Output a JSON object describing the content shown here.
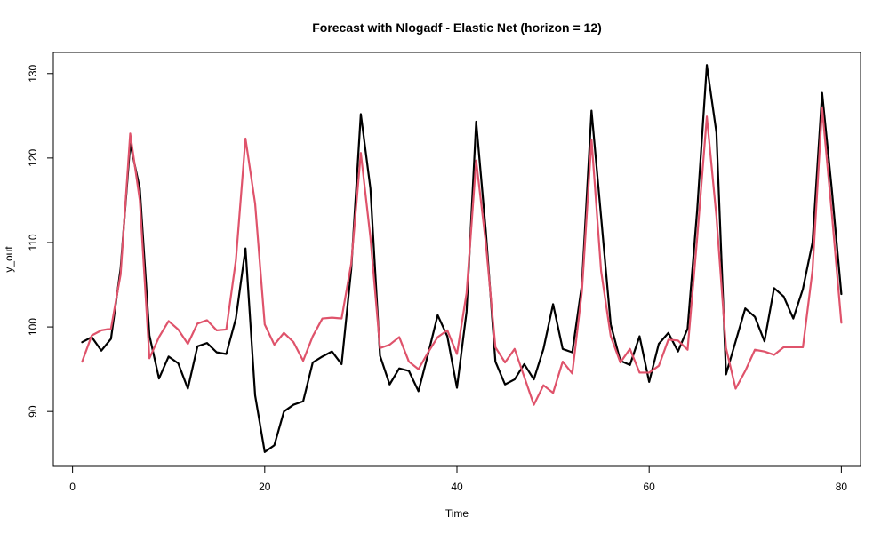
{
  "chart_data": {
    "type": "line",
    "title": "Forecast with Nlogadf - Elastic Net (horizon = 12)",
    "xlabel": "Time",
    "ylabel": "y_out",
    "xlim": [
      -2,
      82
    ],
    "ylim": [
      83.5,
      132.5
    ],
    "x_ticks": [
      0,
      20,
      40,
      60,
      80
    ],
    "y_ticks": [
      90,
      100,
      110,
      120,
      130
    ],
    "grid": false,
    "legend": "none",
    "x": [
      1,
      2,
      3,
      4,
      5,
      6,
      7,
      8,
      9,
      10,
      11,
      12,
      13,
      14,
      15,
      16,
      17,
      18,
      19,
      20,
      21,
      22,
      23,
      24,
      25,
      26,
      27,
      28,
      29,
      30,
      31,
      32,
      33,
      34,
      35,
      36,
      37,
      38,
      39,
      40,
      41,
      42,
      43,
      44,
      45,
      46,
      47,
      48,
      49,
      50,
      51,
      52,
      53,
      54,
      55,
      56,
      57,
      58,
      59,
      60,
      61,
      62,
      63,
      64,
      65,
      66,
      67,
      68,
      69,
      70,
      71,
      72,
      73,
      74,
      75,
      76,
      77,
      78,
      79,
      80
    ],
    "series": [
      {
        "color": "#000000",
        "values": [
          98.2,
          98.8,
          97.2,
          98.6,
          106.9,
          121.7,
          116.4,
          99.0,
          93.9,
          96.5,
          95.7,
          92.7,
          97.7,
          98.1,
          97.0,
          96.8,
          101.0,
          109.3,
          91.9,
          85.2,
          86.0,
          90.0,
          90.8,
          91.2,
          95.8,
          96.5,
          97.1,
          95.6,
          106.8,
          125.2,
          116.4,
          96.6,
          93.2,
          95.1,
          94.8,
          92.4,
          96.8,
          101.4,
          98.9,
          92.8,
          101.8,
          124.3,
          111.4,
          95.9,
          93.2,
          93.8,
          95.6,
          93.8,
          97.4,
          102.7,
          97.4,
          97.0,
          105.0,
          125.6,
          113.0,
          100.3,
          96.0,
          95.5,
          98.9,
          93.5,
          98.0,
          99.3,
          97.1,
          99.8,
          113.9,
          131.0,
          123.0,
          94.4,
          98.3,
          102.2,
          101.2,
          98.3,
          104.6,
          103.6,
          101.0,
          104.5,
          110.0,
          127.7,
          116.4,
          103.9
        ]
      },
      {
        "color": "#DF536B",
        "values": [
          95.9,
          99.0,
          99.6,
          99.8,
          106.2,
          122.9,
          115.0,
          96.3,
          98.8,
          100.7,
          99.7,
          98.0,
          100.4,
          100.8,
          99.6,
          99.7,
          107.9,
          122.3,
          114.6,
          100.3,
          97.9,
          99.3,
          98.2,
          96.0,
          98.9,
          101.0,
          101.1,
          101.0,
          107.5,
          120.6,
          110.6,
          97.5,
          97.9,
          98.8,
          95.9,
          95.0,
          97.0,
          98.8,
          99.6,
          96.8,
          104.0,
          119.7,
          110.0,
          97.6,
          95.8,
          97.4,
          94.1,
          90.8,
          93.1,
          92.2,
          95.9,
          94.5,
          104.2,
          122.2,
          106.6,
          98.9,
          95.8,
          97.4,
          94.6,
          94.6,
          95.4,
          98.5,
          98.4,
          97.3,
          110.6,
          124.9,
          113.1,
          97.5,
          92.7,
          94.8,
          97.3,
          97.1,
          96.7,
          97.6,
          97.6,
          97.6,
          106.7,
          125.9,
          113.6,
          100.5
        ]
      }
    ]
  }
}
